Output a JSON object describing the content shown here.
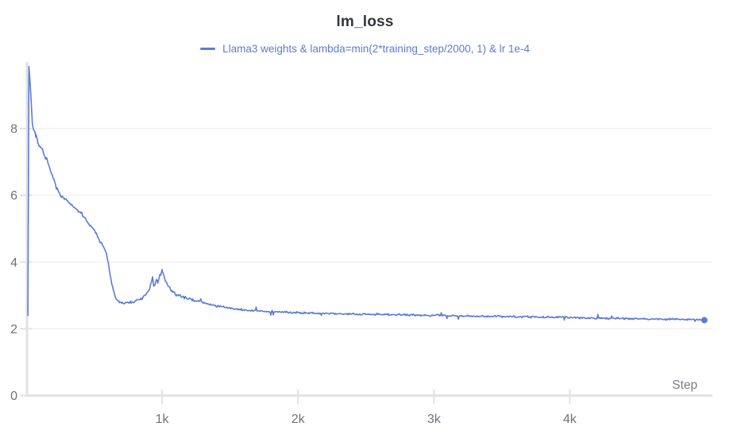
{
  "colors": {
    "accent": "#5d7cd2",
    "title_text": "#33373d",
    "tick_text": "#71717c",
    "axis_line": "#e2e2e7",
    "grid_line": "#ebebee"
  },
  "chart_data": {
    "type": "line",
    "title": "lm_loss",
    "x_axis_label": "Step",
    "grid": "horizontal",
    "legend_position": "top-center",
    "x_domain": [
      0,
      5050
    ],
    "y_domain": [
      0,
      9.95
    ],
    "x_ticks": [
      {
        "v": 1000,
        "label": "1k"
      },
      {
        "v": 2000,
        "label": "2k"
      },
      {
        "v": 3000,
        "label": "3k"
      },
      {
        "v": 4000,
        "label": "4k"
      }
    ],
    "y_ticks": [
      {
        "v": 0,
        "label": "0"
      },
      {
        "v": 2,
        "label": "2"
      },
      {
        "v": 4,
        "label": "4"
      },
      {
        "v": 6,
        "label": "6"
      },
      {
        "v": 8,
        "label": "8"
      }
    ],
    "series": [
      {
        "name": "Llama3 weights & lambda=min(2*training_step/2000, 1) & lr 1e-4",
        "color": "#5d7cd2",
        "end_marker": true,
        "first_step": 12,
        "final_step": 4990,
        "final_value": 2.27,
        "peak_value": 9.86,
        "sample_interval": 6,
        "noise_seed": 7,
        "spike_probability": 0.03,
        "spike_scale": 6.5,
        "trend_keypoints": [
          [
            12,
            2.4,
            0
          ],
          [
            20,
            9.86,
            0
          ],
          [
            30,
            9.3,
            0.02
          ],
          [
            45,
            8.15,
            0.03
          ],
          [
            55,
            7.95,
            0.035
          ],
          [
            70,
            7.85,
            0.04
          ],
          [
            85,
            7.6,
            0.04
          ],
          [
            100,
            7.45,
            0.045
          ],
          [
            120,
            7.35,
            0.045
          ],
          [
            140,
            7.1,
            0.045
          ],
          [
            165,
            6.9,
            0.045
          ],
          [
            195,
            6.55,
            0.045
          ],
          [
            225,
            6.25,
            0.045
          ],
          [
            250,
            6.0,
            0.045
          ],
          [
            280,
            5.9,
            0.045
          ],
          [
            310,
            5.8,
            0.045
          ],
          [
            360,
            5.6,
            0.045
          ],
          [
            410,
            5.45,
            0.045
          ],
          [
            460,
            5.15,
            0.045
          ],
          [
            505,
            4.95,
            0.045
          ],
          [
            545,
            4.6,
            0.045
          ],
          [
            570,
            4.45,
            0.04
          ],
          [
            590,
            4.25,
            0.04
          ],
          [
            605,
            3.95,
            0.04
          ],
          [
            622,
            3.5,
            0.04
          ],
          [
            645,
            3.1,
            0.04
          ],
          [
            662,
            2.88,
            0.035
          ],
          [
            685,
            2.8,
            0.035
          ],
          [
            725,
            2.77,
            0.035
          ],
          [
            765,
            2.8,
            0.035
          ],
          [
            805,
            2.83,
            0.04
          ],
          [
            845,
            2.9,
            0.045
          ],
          [
            878,
            3.0,
            0.05
          ],
          [
            908,
            3.18,
            0.06
          ],
          [
            922,
            3.42,
            0.07
          ],
          [
            930,
            3.55,
            0.07
          ],
          [
            938,
            3.28,
            0.07
          ],
          [
            948,
            3.32,
            0.07
          ],
          [
            958,
            3.48,
            0.07
          ],
          [
            968,
            3.38,
            0.07
          ],
          [
            978,
            3.56,
            0.07
          ],
          [
            990,
            3.62,
            0.07
          ],
          [
            1000,
            3.78,
            0.07
          ],
          [
            1010,
            3.62,
            0.06
          ],
          [
            1022,
            3.45,
            0.06
          ],
          [
            1042,
            3.3,
            0.05
          ],
          [
            1072,
            3.12,
            0.05
          ],
          [
            1105,
            3.02,
            0.045
          ],
          [
            1155,
            2.95,
            0.04
          ],
          [
            1225,
            2.87,
            0.04
          ],
          [
            1305,
            2.78,
            0.04
          ],
          [
            1405,
            2.68,
            0.04
          ],
          [
            1505,
            2.61,
            0.038
          ],
          [
            1605,
            2.56,
            0.038
          ],
          [
            1755,
            2.52,
            0.038
          ],
          [
            1905,
            2.5,
            0.038
          ],
          [
            2105,
            2.47,
            0.036
          ],
          [
            2355,
            2.45,
            0.036
          ],
          [
            2605,
            2.43,
            0.036
          ],
          [
            2905,
            2.41,
            0.036
          ],
          [
            3205,
            2.39,
            0.036
          ],
          [
            3505,
            2.37,
            0.036
          ],
          [
            3805,
            2.35,
            0.036
          ],
          [
            4105,
            2.33,
            0.036
          ],
          [
            4405,
            2.31,
            0.036
          ],
          [
            4705,
            2.29,
            0.036
          ],
          [
            4990,
            2.27,
            0.02
          ]
        ]
      }
    ]
  }
}
